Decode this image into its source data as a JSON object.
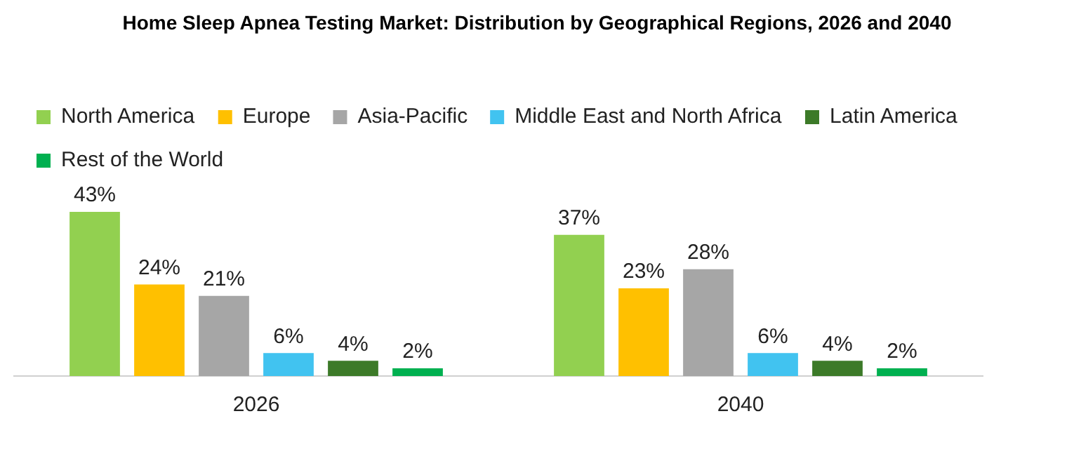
{
  "chart_data": {
    "type": "bar",
    "title": "Home Sleep Apnea Testing Market: Distribution by Geographical Regions, 2026 and 2040",
    "categories": [
      "2026",
      "2040"
    ],
    "legend": "top left",
    "series": [
      {
        "name": "North America",
        "color": "#92d050",
        "values": [
          43,
          37
        ],
        "value_labels": [
          "43%",
          "37%"
        ]
      },
      {
        "name": "Europe",
        "color": "#ffc000",
        "values": [
          24,
          23
        ],
        "value_labels": [
          "24%",
          "23%"
        ]
      },
      {
        "name": "Asia-Pacific",
        "color": "#a6a6a6",
        "values": [
          21,
          28
        ],
        "value_labels": [
          "21%",
          "28%"
        ]
      },
      {
        "name": "Middle East and North Africa",
        "color": "#41c3f0",
        "values": [
          6,
          6
        ],
        "value_labels": [
          "6%",
          "6%"
        ]
      },
      {
        "name": "Latin America",
        "color": "#3c7a28",
        "values": [
          4,
          4
        ],
        "value_labels": [
          "4%",
          "4%"
        ]
      },
      {
        "name": "Rest of the World",
        "color": "#00b050",
        "values": [
          2,
          2
        ],
        "value_labels": [
          "2%",
          "2%"
        ]
      }
    ]
  }
}
